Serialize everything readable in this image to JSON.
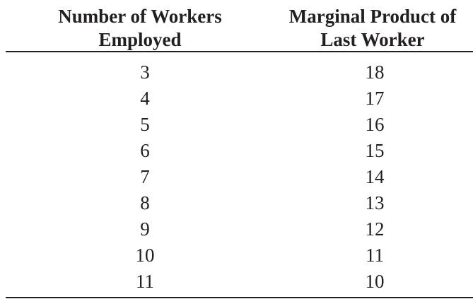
{
  "table": {
    "headers": [
      {
        "line1": "Number of Workers",
        "line2": "Employed"
      },
      {
        "line1": "Marginal Product of",
        "line2": "Last Worker"
      }
    ],
    "rows": [
      [
        "3",
        "18"
      ],
      [
        "4",
        "17"
      ],
      [
        "5",
        "16"
      ],
      [
        "6",
        "15"
      ],
      [
        "7",
        "14"
      ],
      [
        "8",
        "13"
      ],
      [
        "9",
        "12"
      ],
      [
        "10",
        "11"
      ],
      [
        "11",
        "10"
      ]
    ]
  }
}
